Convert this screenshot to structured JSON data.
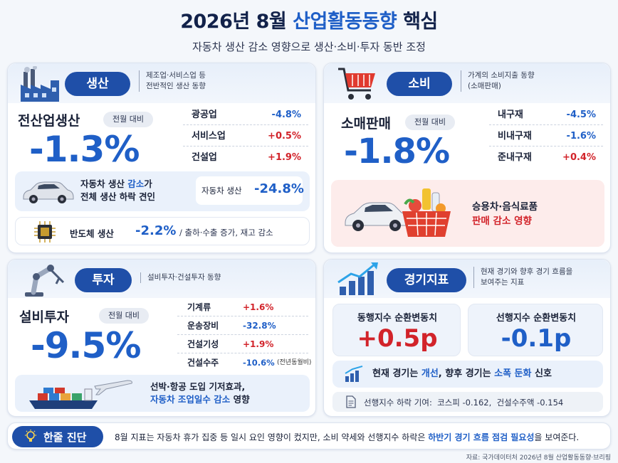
{
  "header": {
    "title_prefix": "2026년 8월 ",
    "title_accent": "산업활동동향",
    "title_suffix": " 핵심",
    "subtitle": "자동차 생산 감소 영향으로 생산·소비·투자 동반 조정"
  },
  "production": {
    "pill": "생산",
    "desc": "제조업·서비스업 등\n전반적인 생산 동향",
    "main_label": "전산업생산",
    "compare_tag": "전월 대비",
    "main_value": "-1.3%",
    "rows": [
      {
        "label": "광공업",
        "value": "-4.8%"
      },
      {
        "label": "서비스업",
        "value": "+0.5%"
      },
      {
        "label": "건설업",
        "value": "+1.9%"
      }
    ],
    "car_note_1": "자동차 생산 ",
    "car_note_1_accent": "감소",
    "car_note_1_end": "가",
    "car_note_2": "전체 생산 하락 견인",
    "car_stat_label": "자동차 생산",
    "car_stat_value": "-24.8%",
    "semi_label": "반도체 생산",
    "semi_value": "-2.2%",
    "semi_note": "/ 출하·수출 증가, 재고 감소"
  },
  "consumption": {
    "pill": "소비",
    "desc": "가계의 소비지출 동향\n(소매판매)",
    "main_label": "소매판매",
    "compare_tag": "전월 대비",
    "main_value": "-1.8%",
    "rows": [
      {
        "label": "내구재",
        "value": "-4.5%"
      },
      {
        "label": "비내구재",
        "value": "-1.6%"
      },
      {
        "label": "준내구재",
        "value": "+0.4%"
      }
    ],
    "note_1": "승용차·음식료품",
    "note_2": "판매 감소 영향"
  },
  "investment": {
    "pill": "투자",
    "desc": "설비투자·건설투자 동향",
    "main_label": "설비투자",
    "compare_tag": "전월 대비",
    "main_value": "-9.5%",
    "rows": [
      {
        "label": "기계류",
        "value": "+1.6%",
        "extra": ""
      },
      {
        "label": "운송장비",
        "value": "-32.8%",
        "extra": ""
      },
      {
        "label": "건설기성",
        "value": "+1.9%",
        "extra": ""
      },
      {
        "label": "건설수주",
        "value": "-10.6%",
        "extra": "(전년동월비)"
      }
    ],
    "note_1": "선박·항공 도입 기저효과,",
    "note_2_accent": "자동차 조업일수 감소",
    "note_2_end": " 영향"
  },
  "indicators": {
    "pill": "경기지표",
    "desc": "현재 경기와 향후 경기 흐름을\n보여주는 지표",
    "coincident_label": "동행지수 순환변동치",
    "coincident_value": "+0.5p",
    "leading_label": "선행지수 순환변동치",
    "leading_value": "-0.1p",
    "signal_1": "현재 경기는 ",
    "signal_accent_1": "개선",
    "signal_2": ", 향후 경기는 ",
    "signal_accent_2": "소폭 둔화",
    "signal_3": " 신호",
    "detail": "선행지수 하락 기여:  코스피 -0.162,  건설수주액 -0.154"
  },
  "summary": {
    "pill": "한줄 진단",
    "text_1": "8월 지표는 자동차 휴가 집중 등 일시 요인 영향이 컸지만, 소비 약세와 선행지수 하락은 ",
    "text_accent": "하반기 경기 흐름 점검 필요성",
    "text_2": "을 보여준다."
  },
  "source": "자료: 국가데이터처 2026년 8월 산업활동동향·브리핑",
  "colors": {
    "accent": "#1f5fc7",
    "negative": "#1f5fc7",
    "positive": "#d2232a",
    "pill": "#1f4fa8"
  }
}
